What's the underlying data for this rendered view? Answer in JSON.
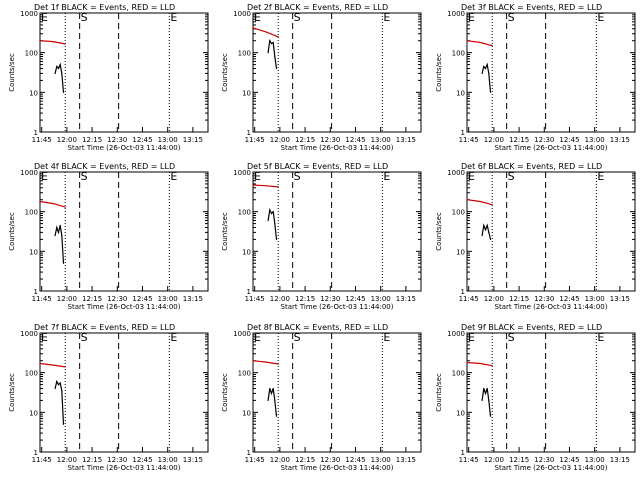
{
  "chart_data": {
    "type": "line",
    "title_suffix": "BLACK = Events, RED = LLD",
    "xlabel": "Start Time (26-Oct-03 11:44:00)",
    "ylabel": "Counts/sec",
    "x_ticks": [
      "11:45",
      "12:00",
      "12:15",
      "12:30",
      "12:45",
      "13:00",
      "13:15"
    ],
    "y_ticks": [
      "1",
      "10",
      "100",
      "1000"
    ],
    "y_scale": "log",
    "ylim": [
      1,
      1000
    ],
    "xlim_minutes": [
      0,
      100
    ],
    "series_colors": {
      "events": "#000000",
      "lld": "#cc0000"
    },
    "markers": [
      {
        "label": "E",
        "x": 0,
        "style": "dotted"
      },
      {
        "label": "",
        "x": 15,
        "style": "dotted"
      },
      {
        "label": "S",
        "x": 23.6,
        "style": "dashed"
      },
      {
        "label": "",
        "x": 46.8,
        "style": "dashed"
      },
      {
        "label": "E",
        "x": 77,
        "style": "dotted"
      }
    ],
    "panels": [
      {
        "title": "Det 1f",
        "lld": {
          "x": [
            0,
            8,
            15
          ],
          "y": [
            200,
            190,
            165
          ]
        },
        "events": {
          "x": [
            9,
            10,
            11,
            12,
            13,
            14
          ],
          "y": [
            30,
            45,
            40,
            50,
            30,
            10
          ]
        }
      },
      {
        "title": "Det 2f",
        "lld": {
          "x": [
            0,
            8,
            15
          ],
          "y": [
            420,
            330,
            250
          ]
        },
        "events": {
          "x": [
            9,
            10,
            11,
            12,
            13,
            14
          ],
          "y": [
            100,
            200,
            170,
            180,
            80,
            40
          ]
        }
      },
      {
        "title": "Det 3f",
        "lld": {
          "x": [
            0,
            8,
            15
          ],
          "y": [
            200,
            180,
            150
          ]
        },
        "events": {
          "x": [
            9,
            10,
            11,
            12,
            13,
            14
          ],
          "y": [
            30,
            45,
            40,
            50,
            30,
            10
          ]
        }
      },
      {
        "title": "Det 4f",
        "lld": {
          "x": [
            0,
            8,
            15
          ],
          "y": [
            180,
            160,
            130
          ]
        },
        "events": {
          "x": [
            9,
            10,
            11,
            12,
            13,
            14
          ],
          "y": [
            25,
            40,
            30,
            45,
            25,
            5
          ]
        }
      },
      {
        "title": "Det 5f",
        "lld": {
          "x": [
            0,
            8,
            15
          ],
          "y": [
            470,
            450,
            420
          ]
        },
        "events": {
          "x": [
            9,
            10,
            11,
            12,
            13,
            14
          ],
          "y": [
            60,
            110,
            90,
            100,
            50,
            20
          ]
        }
      },
      {
        "title": "Det 6f",
        "lld": {
          "x": [
            0,
            8,
            15
          ],
          "y": [
            200,
            180,
            150
          ]
        },
        "events": {
          "x": [
            9,
            10,
            11,
            12,
            13,
            14
          ],
          "y": [
            25,
            45,
            35,
            45,
            30,
            20
          ]
        }
      },
      {
        "title": "Det 7f",
        "lld": {
          "x": [
            0,
            8,
            15
          ],
          "y": [
            170,
            155,
            140
          ]
        },
        "events": {
          "x": [
            9,
            10,
            11,
            12,
            13,
            14
          ],
          "y": [
            40,
            60,
            50,
            55,
            35,
            5
          ]
        }
      },
      {
        "title": "Det 8f",
        "lld": {
          "x": [
            0,
            8,
            15
          ],
          "y": [
            200,
            185,
            165
          ]
        },
        "events": {
          "x": [
            9,
            10,
            11,
            12,
            13,
            14
          ],
          "y": [
            20,
            40,
            30,
            40,
            20,
            8
          ]
        }
      },
      {
        "title": "Det 9f",
        "lld": {
          "x": [
            0,
            8,
            15
          ],
          "y": [
            180,
            170,
            150
          ]
        },
        "events": {
          "x": [
            9,
            10,
            11,
            12,
            13,
            14
          ],
          "y": [
            20,
            40,
            30,
            40,
            20,
            8
          ]
        }
      }
    ]
  }
}
